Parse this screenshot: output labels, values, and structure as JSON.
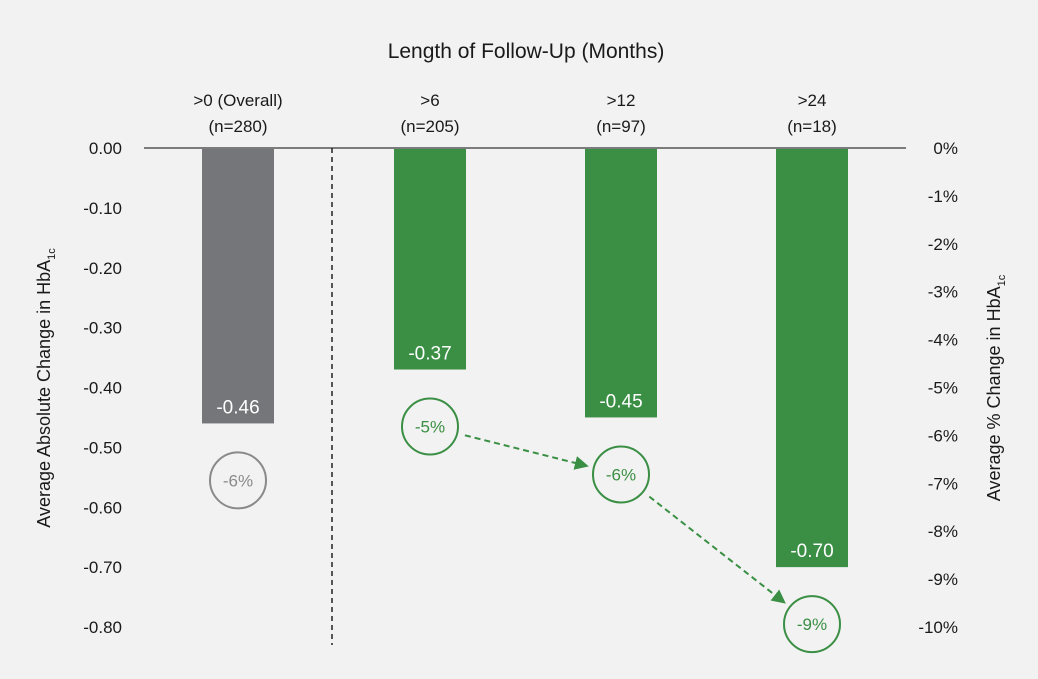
{
  "chart_data": {
    "type": "bar",
    "title": "Length of Follow-Up (Months)",
    "ylabel": {
      "main": "Average Absolute Change in HbA",
      "sub": "1c"
    },
    "y2label": {
      "main": "Average % Change in HbA",
      "sub": "1c"
    },
    "ylim": [
      -0.8,
      0
    ],
    "yticks": [
      0.0,
      -0.1,
      -0.2,
      -0.3,
      -0.4,
      -0.5,
      -0.6,
      -0.7,
      -0.8
    ],
    "ytick_labels": [
      "0.00",
      "-0.10",
      "-0.20",
      "-0.30",
      "-0.40",
      "-0.50",
      "-0.60",
      "-0.70",
      "-0.80"
    ],
    "y2lim": [
      -10,
      0
    ],
    "y2ticks": [
      0,
      -1,
      -2,
      -3,
      -4,
      -5,
      -6,
      -7,
      -8,
      -9,
      -10
    ],
    "y2tick_labels": [
      "0%",
      "-1%",
      "-2%",
      "-3%",
      "-4%",
      "-5%",
      "-6%",
      "-7%",
      "-8%",
      "-9%",
      "-10%"
    ],
    "categories": [
      {
        "label": ">0 (Overall)",
        "n": "(n=280)"
      },
      {
        "label": ">6",
        "n": "(n=205)"
      },
      {
        "label": ">12",
        "n": "(n=97)"
      },
      {
        "label": ">24",
        "n": "(n=18)"
      }
    ],
    "values": [
      -0.46,
      -0.37,
      -0.45,
      -0.7
    ],
    "value_labels": [
      "-0.46",
      "-0.37",
      "-0.45",
      "-0.70"
    ],
    "percent_changes": [
      -6,
      -5,
      -6,
      -9
    ],
    "percent_labels": [
      "-6%",
      "-5%",
      "-6%",
      "-9%"
    ],
    "bar_colors": [
      "#757679",
      "#3a8f44",
      "#3a8f44",
      "#3a8f44"
    ],
    "circle_colors": [
      "#8a8a8a",
      "#3a8f44",
      "#3a8f44",
      "#3a8f44"
    ],
    "trend_arrows": [
      [
        1,
        2
      ],
      [
        2,
        3
      ]
    ],
    "separator_after_category": 0,
    "grid": false,
    "colors": {
      "background": "#f2f2f2",
      "axis": "#555555",
      "text": "#1a1a1a",
      "label_on_bar": "#ffffff"
    }
  }
}
